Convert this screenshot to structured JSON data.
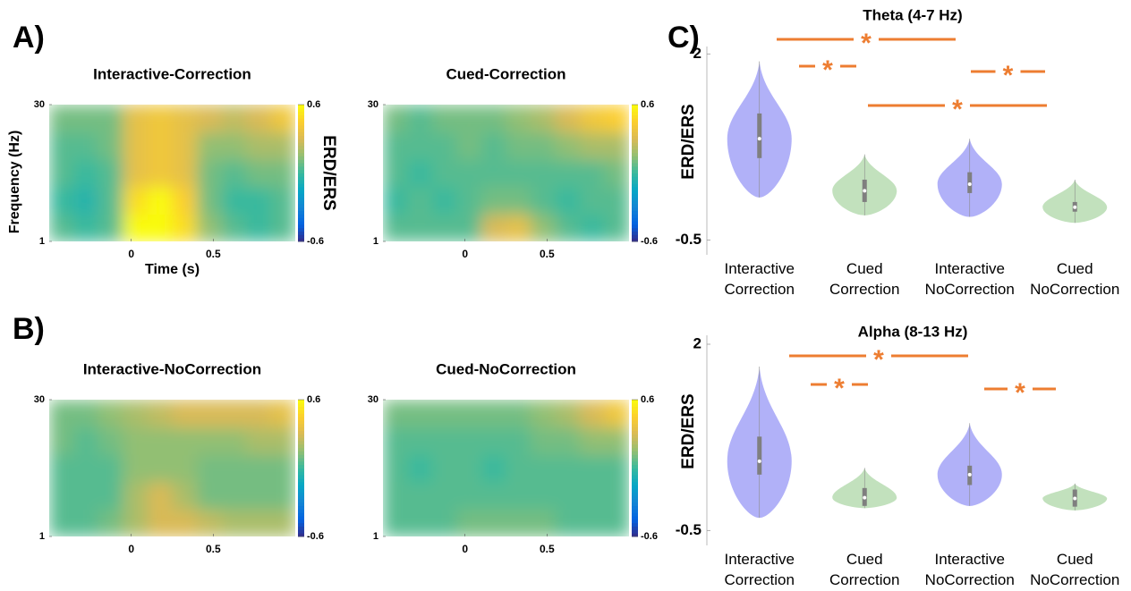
{
  "panel_labels": [
    "A)",
    "B)",
    "C)"
  ],
  "chart_data": [
    {
      "type": "heatmap",
      "title": "Interactive-Correction",
      "xlabel": "Time (s)",
      "ylabel": "Frequency (Hz)",
      "colorbar_label": "ERD/ERS",
      "xlim": [
        -0.5,
        1.0
      ],
      "ylim": [
        1,
        30
      ],
      "xticks": [
        0,
        0.5
      ],
      "yticks": [
        1,
        30
      ],
      "clim": [
        -0.6,
        0.6
      ],
      "cticks": [
        -0.6,
        0.6
      ],
      "colormap": "parula",
      "z": [
        [
          0.05,
          0.0,
          0.05,
          0.6,
          0.6,
          0.5,
          0.15,
          0.05,
          0.0,
          0.05
        ],
        [
          0.0,
          -0.05,
          0.05,
          0.5,
          0.6,
          0.45,
          0.1,
          0.0,
          0.0,
          0.05
        ],
        [
          0.05,
          0.0,
          0.05,
          0.35,
          0.4,
          0.35,
          0.1,
          0.05,
          0.1,
          0.1
        ],
        [
          0.05,
          0.05,
          0.1,
          0.35,
          0.4,
          0.35,
          0.15,
          0.15,
          0.2,
          0.2
        ],
        [
          0.1,
          0.1,
          0.1,
          0.35,
          0.4,
          0.35,
          0.3,
          0.25,
          0.3,
          0.4
        ]
      ]
    },
    {
      "type": "heatmap",
      "title": "Cued-Correction",
      "xlim": [
        -0.5,
        1.0
      ],
      "ylim": [
        1,
        30
      ],
      "xticks": [
        0,
        0.5
      ],
      "yticks": [
        1,
        30
      ],
      "clim": [
        -0.6,
        0.6
      ],
      "cticks": [
        -0.6,
        0.6
      ],
      "colormap": "parula",
      "z": [
        [
          0.05,
          0.05,
          0.05,
          0.05,
          0.3,
          0.35,
          0.15,
          0.05,
          0.0,
          0.05
        ],
        [
          0.0,
          0.05,
          0.0,
          0.05,
          0.1,
          0.1,
          0.05,
          0.0,
          0.05,
          0.05
        ],
        [
          0.05,
          0.0,
          0.05,
          0.05,
          0.05,
          0.05,
          0.05,
          0.05,
          0.05,
          0.1
        ],
        [
          0.05,
          0.05,
          0.05,
          0.1,
          0.05,
          0.1,
          0.1,
          0.15,
          0.2,
          0.2
        ],
        [
          0.1,
          0.05,
          0.1,
          0.1,
          0.1,
          0.15,
          0.2,
          0.3,
          0.4,
          0.45
        ]
      ]
    },
    {
      "type": "heatmap",
      "title": "Interactive-NoCorrection",
      "xlim": [
        -0.5,
        1.0
      ],
      "ylim": [
        1,
        30
      ],
      "xticks": [
        0,
        0.5
      ],
      "yticks": [
        1,
        30
      ],
      "clim": [
        -0.6,
        0.6
      ],
      "cticks": [
        -0.6,
        0.6
      ],
      "colormap": "parula",
      "z": [
        [
          0.05,
          0.05,
          0.1,
          0.2,
          0.3,
          0.3,
          0.25,
          0.2,
          0.2,
          0.2
        ],
        [
          0.05,
          0.05,
          0.05,
          0.2,
          0.3,
          0.2,
          0.1,
          0.1,
          0.1,
          0.1
        ],
        [
          0.05,
          0.05,
          0.05,
          0.15,
          0.15,
          0.15,
          0.1,
          0.1,
          0.1,
          0.1
        ],
        [
          0.1,
          0.05,
          0.1,
          0.15,
          0.15,
          0.15,
          0.15,
          0.15,
          0.2,
          0.2
        ],
        [
          0.1,
          0.1,
          0.15,
          0.2,
          0.25,
          0.3,
          0.3,
          0.3,
          0.3,
          0.35
        ]
      ]
    },
    {
      "type": "heatmap",
      "title": "Cued-NoCorrection",
      "xlim": [
        -0.5,
        1.0
      ],
      "ylim": [
        1,
        30
      ],
      "xticks": [
        0,
        0.5
      ],
      "yticks": [
        1,
        30
      ],
      "clim": [
        -0.6,
        0.6
      ],
      "cticks": [
        -0.6,
        0.6
      ],
      "colormap": "parula",
      "z": [
        [
          0.05,
          0.05,
          0.05,
          0.1,
          0.1,
          0.1,
          0.1,
          0.05,
          0.05,
          0.05
        ],
        [
          0.05,
          0.05,
          0.05,
          0.05,
          0.05,
          0.05,
          0.05,
          0.05,
          0.05,
          0.05
        ],
        [
          0.05,
          0.0,
          0.05,
          0.05,
          0.0,
          0.05,
          0.05,
          0.05,
          0.05,
          0.05
        ],
        [
          0.05,
          0.05,
          0.05,
          0.05,
          0.05,
          0.05,
          0.1,
          0.1,
          0.15,
          0.15
        ],
        [
          0.1,
          0.1,
          0.1,
          0.1,
          0.1,
          0.1,
          0.15,
          0.2,
          0.3,
          0.4
        ]
      ]
    },
    {
      "type": "violin",
      "title": "Theta (4-7 Hz)",
      "ylabel": "ERD/ERS",
      "categories": [
        "Interactive Correction",
        "Cued Correction",
        "Interactive NoCorrection",
        "Cued NoCorrection"
      ],
      "colors": [
        "#a3a3f7",
        "#b7dcb1",
        "#a3a3f7",
        "#b7dcb1"
      ],
      "ylim": [
        -0.7,
        2.1
      ],
      "yticks": [
        -0.5,
        2
      ],
      "min": [
        0.07,
        -0.17,
        -0.19,
        -0.27
      ],
      "q1": [
        0.6,
        0.01,
        0.13,
        -0.12
      ],
      "median": [
        0.86,
        0.16,
        0.25,
        -0.06
      ],
      "q3": [
        1.2,
        0.31,
        0.41,
        0.01
      ],
      "max": [
        1.9,
        0.65,
        0.86,
        0.31
      ],
      "annotations": [
        "*",
        "*",
        "*",
        "*"
      ],
      "annotation_color": "#ed7d31"
    },
    {
      "type": "violin",
      "title": "Alpha (8-13 Hz)",
      "ylabel": "ERD/ERS",
      "categories": [
        "Interactive Correction",
        "Cued Correction",
        "Interactive NoCorrection",
        "Cued NoCorrection"
      ],
      "colors": [
        "#a3a3f7",
        "#b7dcb1",
        "#a3a3f7",
        "#b7dcb1"
      ],
      "ylim": [
        -0.7,
        2.12
      ],
      "yticks": [
        -0.5,
        2
      ],
      "min": [
        -0.33,
        -0.2,
        -0.17,
        -0.23
      ],
      "q1": [
        0.25,
        -0.17,
        0.11,
        -0.18
      ],
      "median": [
        0.43,
        -0.06,
        0.25,
        -0.07
      ],
      "q3": [
        0.76,
        0.07,
        0.37,
        0.05
      ],
      "max": [
        1.7,
        0.34,
        0.94,
        0.13
      ],
      "annotations": [
        "*",
        "*",
        "*"
      ],
      "annotation_color": "#ed7d31"
    }
  ]
}
